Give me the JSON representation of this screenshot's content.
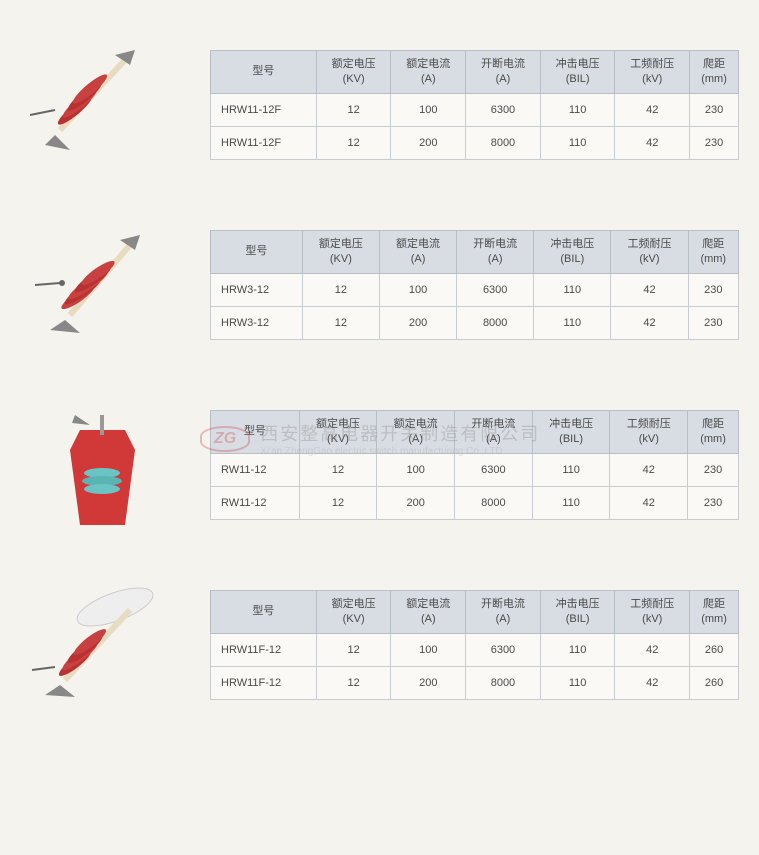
{
  "headers": {
    "model": "型号",
    "rated_voltage": "额定电压\n(KV)",
    "rated_current": "额定电流\n(A)",
    "break_current": "开断电流\n(A)",
    "impulse_voltage": "冲击电压\n(BIL)",
    "pf_withstand": "工频耐压\n(kV)",
    "creepage": "爬距\n(mm)"
  },
  "products": [
    {
      "rows": [
        {
          "model": "HRW11-12F",
          "kv": "12",
          "a": "100",
          "break": "6300",
          "bil": "110",
          "pf": "42",
          "creep": "230"
        },
        {
          "model": "HRW11-12F",
          "kv": "12",
          "a": "200",
          "break": "8000",
          "bil": "110",
          "pf": "42",
          "creep": "230"
        }
      ]
    },
    {
      "rows": [
        {
          "model": "HRW3-12",
          "kv": "12",
          "a": "100",
          "break": "6300",
          "bil": "110",
          "pf": "42",
          "creep": "230"
        },
        {
          "model": "HRW3-12",
          "kv": "12",
          "a": "200",
          "break": "8000",
          "bil": "110",
          "pf": "42",
          "creep": "230"
        }
      ]
    },
    {
      "rows": [
        {
          "model": "RW11-12",
          "kv": "12",
          "a": "100",
          "break": "6300",
          "bil": "110",
          "pf": "42",
          "creep": "230"
        },
        {
          "model": "RW11-12",
          "kv": "12",
          "a": "200",
          "break": "8000",
          "bil": "110",
          "pf": "42",
          "creep": "230"
        }
      ]
    },
    {
      "rows": [
        {
          "model": "HRW11F-12",
          "kv": "12",
          "a": "100",
          "break": "6300",
          "bil": "110",
          "pf": "42",
          "creep": "260"
        },
        {
          "model": "HRW11F-12",
          "kv": "12",
          "a": "200",
          "break": "8000",
          "bil": "110",
          "pf": "42",
          "creep": "260"
        }
      ]
    }
  ],
  "watermark": {
    "logo": "ZG",
    "cn": "西安整高电器开关制造有限公司",
    "en": "Xi'an ZhengGao electric switch manufacturing Co.,LTD"
  },
  "colors": {
    "header_bg": "#d8dde3",
    "border": "#b8bec6",
    "cell_bg": "#faf9f5",
    "text": "#4a4a4a",
    "red": "#b83232",
    "insulator_red": "#c94040",
    "metal": "#888888",
    "tube": "#e8dcc0",
    "teal": "#6bc4c4"
  }
}
